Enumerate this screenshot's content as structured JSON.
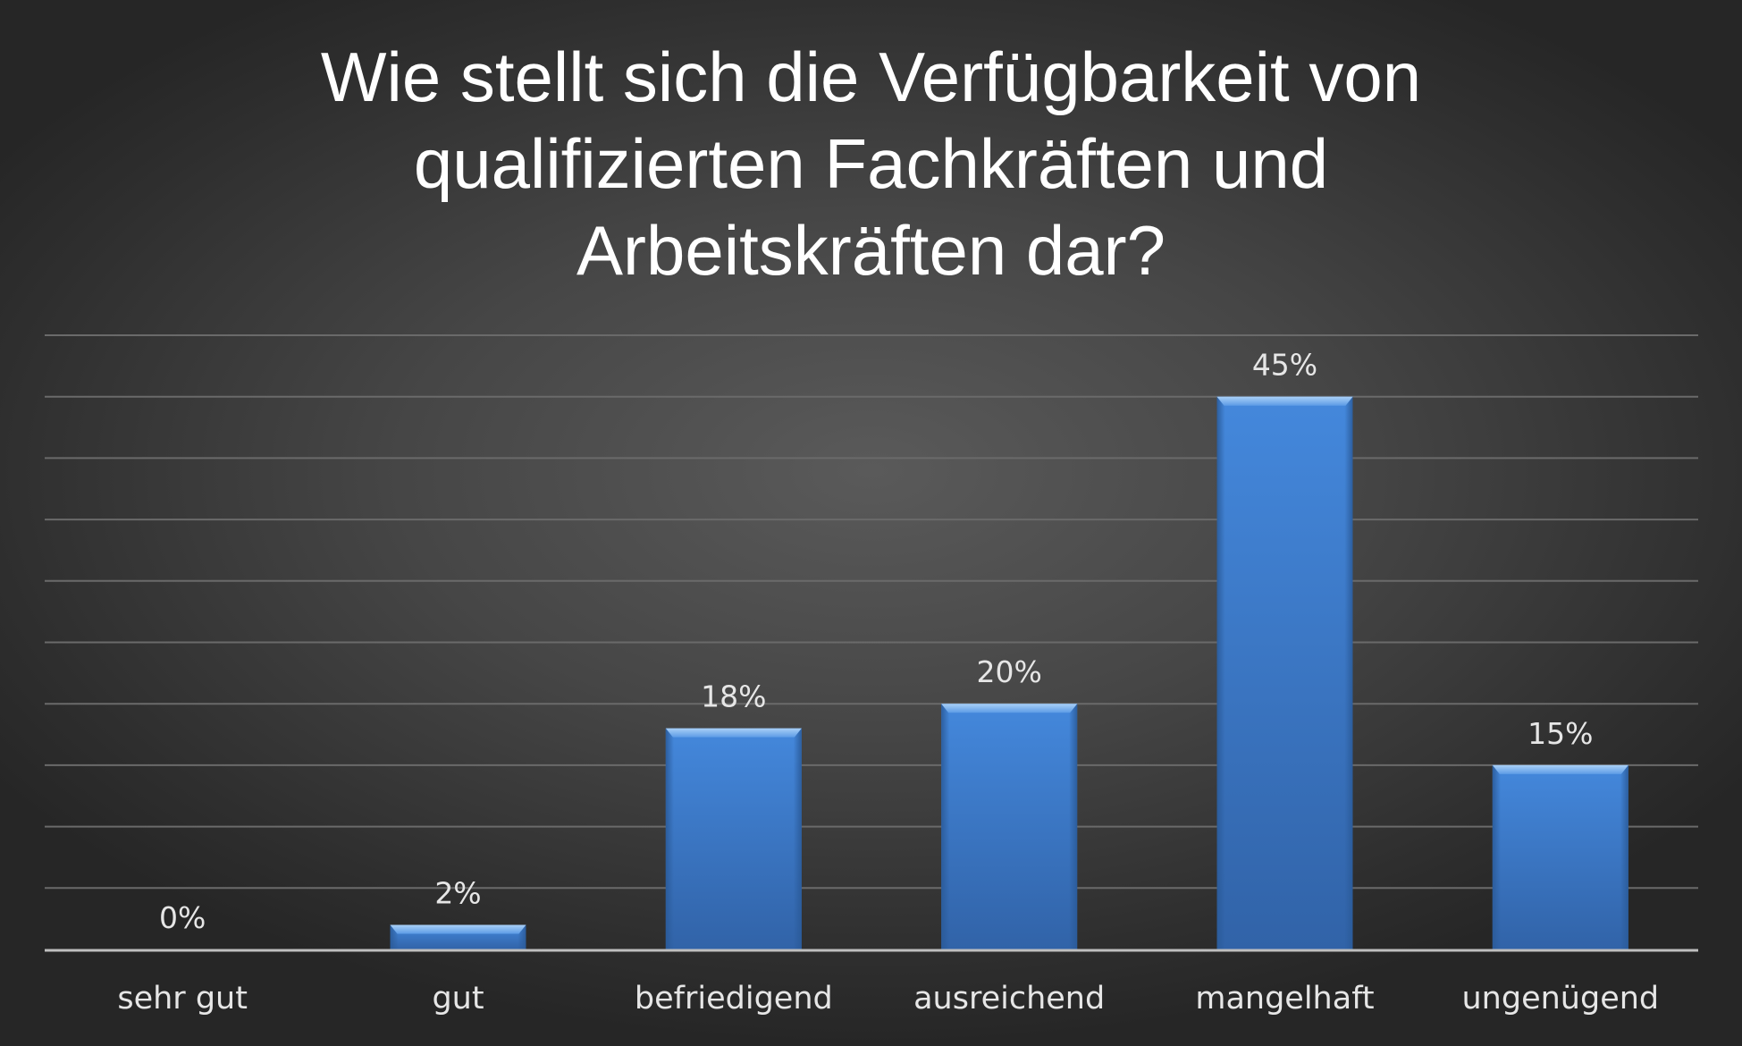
{
  "chart_data": {
    "type": "bar",
    "title": "Wie stellt sich die Verfügbarkeit von\nqualifizierten Fachkräften und\nArbeitskräften dar?",
    "categories": [
      "sehr gut",
      "gut",
      "befriedigend",
      "ausreichend",
      "mangelhaft",
      "ungenügend"
    ],
    "values": [
      0,
      2,
      18,
      20,
      45,
      15
    ],
    "value_labels": [
      "0%",
      "2%",
      "18%",
      "20%",
      "45%",
      "15%"
    ],
    "unit": "%",
    "ylim": [
      0,
      50
    ],
    "grid": true,
    "legend": "none",
    "colors": {
      "bar": "#3f7fd0",
      "bar_light": "#8bbcf2",
      "bar_dark": "#2c5f9e",
      "grid": "#6a6a6a",
      "axis": "#bfbfbf",
      "text": "#e6e6e6"
    }
  }
}
